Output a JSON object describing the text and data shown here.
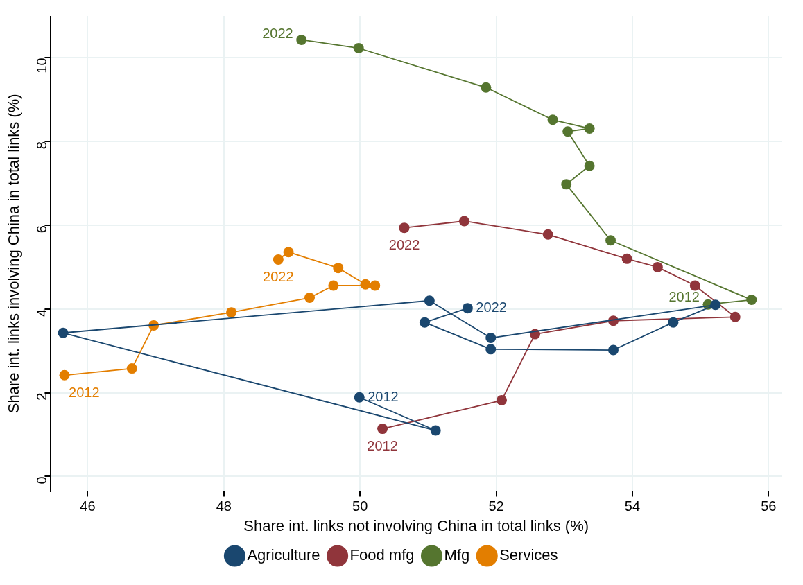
{
  "chart_data": {
    "type": "line",
    "xlabel": "Share int. links not involving China in total links (%)",
    "ylabel": "Share int. links involving China in total links (%)",
    "xlim": [
      45.45,
      56.2
    ],
    "xticks": [
      46,
      48,
      50,
      52,
      54,
      56
    ],
    "ylim": [
      -0.35,
      11.0
    ],
    "yticks": [
      0,
      2,
      4,
      6,
      8,
      10
    ],
    "grid": true,
    "legend": "bottom",
    "marker": "circle",
    "line_style": "solid",
    "series": [
      {
        "name": "Agriculture",
        "color": "#1a476f",
        "x": [
          49.99,
          51.11,
          45.64,
          51.02,
          51.92,
          55.22,
          54.6,
          53.72,
          51.92,
          50.95,
          51.58
        ],
        "values": [
          1.89,
          1.1,
          3.43,
          4.2,
          3.31,
          4.1,
          3.68,
          3.02,
          3.04,
          3.68,
          4.02
        ]
      },
      {
        "name": "Food mfg",
        "color": "#90353b",
        "x": [
          50.33,
          52.08,
          52.57,
          53.72,
          55.51,
          54.92,
          54.37,
          53.92,
          52.76,
          51.53,
          50.65
        ],
        "values": [
          1.14,
          1.82,
          3.4,
          3.72,
          3.81,
          4.56,
          5.0,
          5.2,
          5.78,
          6.1,
          5.94
        ]
      },
      {
        "name": "Mfg",
        "color": "#55752f",
        "x": [
          55.11,
          55.75,
          53.68,
          53.03,
          53.37,
          53.05,
          53.37,
          52.83,
          51.85,
          49.98,
          49.14
        ],
        "values": [
          4.11,
          4.22,
          5.64,
          6.98,
          7.42,
          8.24,
          8.31,
          8.52,
          9.29,
          10.23,
          10.43
        ]
      },
      {
        "name": "Services",
        "color": "#e37e00",
        "x": [
          45.66,
          46.65,
          46.97,
          48.11,
          49.26,
          49.61,
          50.22,
          50.08,
          49.68,
          48.95,
          48.8
        ],
        "values": [
          2.42,
          2.58,
          3.61,
          3.92,
          4.27,
          4.56,
          4.56,
          4.59,
          4.98,
          5.36,
          5.18
        ]
      }
    ],
    "annotations": [
      {
        "text": "2012",
        "x": 49.99,
        "y": 1.89
      },
      {
        "text": "2022",
        "x": 51.58,
        "y": 4.02
      },
      {
        "text": "2012",
        "x": 50.33,
        "y": 1.14
      },
      {
        "text": "2022",
        "x": 50.65,
        "y": 5.94
      },
      {
        "text": "2012",
        "x": 55.11,
        "y": 4.11
      },
      {
        "text": "2022",
        "x": 49.14,
        "y": 10.43
      },
      {
        "text": "2012",
        "x": 45.66,
        "y": 2.42
      },
      {
        "text": "2022",
        "x": 48.8,
        "y": 5.18
      }
    ]
  }
}
